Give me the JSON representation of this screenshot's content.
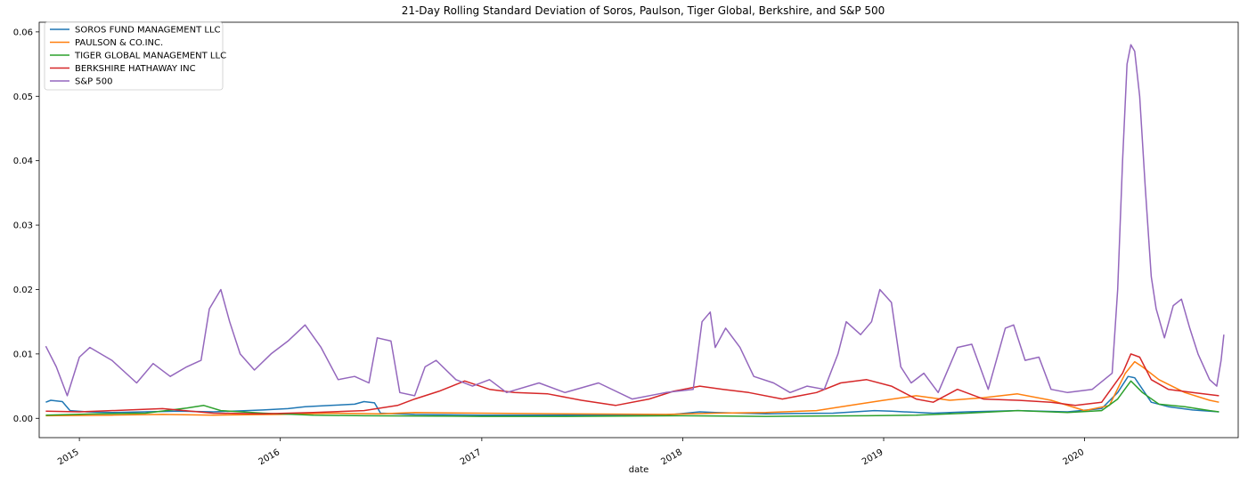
{
  "chart_data": {
    "type": "line",
    "title": "21-Day Rolling Standard Deviation of Soros, Paulson, Tiger Global, Berkshire, and S&P 500",
    "xlabel": "date",
    "ylabel": "",
    "xlim": [
      "2014-10-20",
      "2020-10-06"
    ],
    "ylim": [
      -0.003,
      0.0615
    ],
    "x_ticks": [
      "2015-01-01",
      "2016-01-01",
      "2017-01-01",
      "2018-01-01",
      "2019-01-01",
      "2020-01-01"
    ],
    "x_tick_labels": [
      "2015",
      "2016",
      "2017",
      "2018",
      "2019",
      "2020"
    ],
    "y_ticks": [
      0.0,
      0.01,
      0.02,
      0.03,
      0.04,
      0.05,
      0.06
    ],
    "y_tick_labels": [
      "0.00",
      "0.01",
      "0.02",
      "0.03",
      "0.04",
      "0.05",
      "0.06"
    ],
    "grid": false,
    "legend_position": "top-left",
    "series": [
      {
        "name": "SOROS FUND MANAGEMENT LLC",
        "color": "#1f77b4",
        "points": [
          [
            "2014-11-01",
            0.0025
          ],
          [
            "2014-11-10",
            0.0028
          ],
          [
            "2014-12-01",
            0.0026
          ],
          [
            "2014-12-15",
            0.0012
          ],
          [
            "2015-01-15",
            0.001
          ],
          [
            "2015-03-01",
            0.0009
          ],
          [
            "2015-05-01",
            0.001
          ],
          [
            "2015-07-01",
            0.0011
          ],
          [
            "2015-09-01",
            0.001
          ],
          [
            "2015-11-01",
            0.0012
          ],
          [
            "2015-12-01",
            0.0013
          ],
          [
            "2016-01-15",
            0.0015
          ],
          [
            "2016-02-15",
            0.0018
          ],
          [
            "2016-04-01",
            0.002
          ],
          [
            "2016-05-15",
            0.0022
          ],
          [
            "2016-06-01",
            0.0026
          ],
          [
            "2016-06-20",
            0.0024
          ],
          [
            "2016-07-01",
            0.0008
          ],
          [
            "2016-09-01",
            0.0006
          ],
          [
            "2017-01-01",
            0.0005
          ],
          [
            "2017-06-01",
            0.0005
          ],
          [
            "2017-12-01",
            0.0005
          ],
          [
            "2018-02-01",
            0.001
          ],
          [
            "2018-03-01",
            0.0009
          ],
          [
            "2018-06-01",
            0.0007
          ],
          [
            "2018-10-01",
            0.0008
          ],
          [
            "2018-12-15",
            0.0012
          ],
          [
            "2019-01-15",
            0.0011
          ],
          [
            "2019-04-01",
            0.0008
          ],
          [
            "2019-06-01",
            0.001
          ],
          [
            "2019-09-01",
            0.0012
          ],
          [
            "2019-12-01",
            0.001
          ],
          [
            "2020-02-01",
            0.0015
          ],
          [
            "2020-03-01",
            0.004
          ],
          [
            "2020-03-20",
            0.0065
          ],
          [
            "2020-04-01",
            0.0063
          ],
          [
            "2020-05-01",
            0.0025
          ],
          [
            "2020-06-01",
            0.0018
          ],
          [
            "2020-07-15",
            0.0013
          ],
          [
            "2020-09-01",
            0.001
          ]
        ]
      },
      {
        "name": "PAULSON & CO.INC.",
        "color": "#ff7f0e",
        "points": [
          [
            "2014-11-01",
            0.0004
          ],
          [
            "2015-03-01",
            0.0005
          ],
          [
            "2015-06-01",
            0.0006
          ],
          [
            "2015-09-01",
            0.0005
          ],
          [
            "2016-01-01",
            0.0006
          ],
          [
            "2016-04-01",
            0.0008
          ],
          [
            "2016-07-01",
            0.0007
          ],
          [
            "2016-09-01",
            0.0009
          ],
          [
            "2017-01-01",
            0.0008
          ],
          [
            "2017-06-01",
            0.0007
          ],
          [
            "2017-12-01",
            0.0006
          ],
          [
            "2018-03-01",
            0.0008
          ],
          [
            "2018-06-01",
            0.0009
          ],
          [
            "2018-09-01",
            0.0012
          ],
          [
            "2018-11-01",
            0.002
          ],
          [
            "2019-01-01",
            0.0028
          ],
          [
            "2019-03-01",
            0.0035
          ],
          [
            "2019-05-01",
            0.0028
          ],
          [
            "2019-07-01",
            0.0032
          ],
          [
            "2019-09-01",
            0.0038
          ],
          [
            "2019-11-01",
            0.0028
          ],
          [
            "2020-01-01",
            0.0012
          ],
          [
            "2020-02-15",
            0.002
          ],
          [
            "2020-03-15",
            0.007
          ],
          [
            "2020-04-01",
            0.0088
          ],
          [
            "2020-04-15",
            0.008
          ],
          [
            "2020-05-15",
            0.006
          ],
          [
            "2020-07-01",
            0.004
          ],
          [
            "2020-08-15",
            0.0028
          ],
          [
            "2020-09-01",
            0.0025
          ]
        ]
      },
      {
        "name": "TIGER GLOBAL MANAGEMENT LLC",
        "color": "#2ca02c",
        "points": [
          [
            "2014-11-01",
            0.0005
          ],
          [
            "2015-02-01",
            0.0007
          ],
          [
            "2015-05-01",
            0.0008
          ],
          [
            "2015-07-15",
            0.0016
          ],
          [
            "2015-08-15",
            0.002
          ],
          [
            "2015-09-15",
            0.0012
          ],
          [
            "2015-12-01",
            0.0008
          ],
          [
            "2016-03-01",
            0.0005
          ],
          [
            "2016-06-01",
            0.0004
          ],
          [
            "2017-01-01",
            0.0003
          ],
          [
            "2017-06-01",
            0.0003
          ],
          [
            "2018-01-01",
            0.0004
          ],
          [
            "2018-06-01",
            0.0003
          ],
          [
            "2018-12-01",
            0.0004
          ],
          [
            "2019-03-01",
            0.0005
          ],
          [
            "2019-06-01",
            0.0008
          ],
          [
            "2019-09-01",
            0.0012
          ],
          [
            "2019-12-01",
            0.0009
          ],
          [
            "2020-02-01",
            0.0012
          ],
          [
            "2020-03-01",
            0.003
          ],
          [
            "2020-03-25",
            0.0058
          ],
          [
            "2020-04-15",
            0.004
          ],
          [
            "2020-05-15",
            0.0022
          ],
          [
            "2020-07-01",
            0.0018
          ],
          [
            "2020-08-15",
            0.0012
          ],
          [
            "2020-09-01",
            0.001
          ]
        ]
      },
      {
        "name": "BERKSHIRE HATHAWAY INC",
        "color": "#d62728",
        "points": [
          [
            "2014-11-01",
            0.0011
          ],
          [
            "2015-01-01",
            0.001
          ],
          [
            "2015-04-01",
            0.0013
          ],
          [
            "2015-06-01",
            0.0015
          ],
          [
            "2015-09-01",
            0.0008
          ],
          [
            "2015-12-01",
            0.0007
          ],
          [
            "2016-03-01",
            0.0009
          ],
          [
            "2016-06-01",
            0.0012
          ],
          [
            "2016-08-01",
            0.002
          ],
          [
            "2016-09-01",
            0.003
          ],
          [
            "2016-10-15",
            0.0042
          ],
          [
            "2016-12-01",
            0.0058
          ],
          [
            "2017-01-15",
            0.0045
          ],
          [
            "2017-03-01",
            0.004
          ],
          [
            "2017-05-01",
            0.0038
          ],
          [
            "2017-07-01",
            0.0028
          ],
          [
            "2017-09-01",
            0.002
          ],
          [
            "2017-11-01",
            0.003
          ],
          [
            "2017-12-15",
            0.0042
          ],
          [
            "2018-02-01",
            0.005
          ],
          [
            "2018-03-15",
            0.0045
          ],
          [
            "2018-05-01",
            0.004
          ],
          [
            "2018-07-01",
            0.003
          ],
          [
            "2018-09-01",
            0.004
          ],
          [
            "2018-10-15",
            0.0055
          ],
          [
            "2018-12-01",
            0.006
          ],
          [
            "2019-01-15",
            0.005
          ],
          [
            "2019-03-01",
            0.003
          ],
          [
            "2019-04-01",
            0.0025
          ],
          [
            "2019-05-15",
            0.0045
          ],
          [
            "2019-07-01",
            0.003
          ],
          [
            "2019-09-01",
            0.0028
          ],
          [
            "2019-11-01",
            0.0025
          ],
          [
            "2019-12-15",
            0.002
          ],
          [
            "2020-02-01",
            0.0025
          ],
          [
            "2020-03-10",
            0.007
          ],
          [
            "2020-03-25",
            0.01
          ],
          [
            "2020-04-10",
            0.0095
          ],
          [
            "2020-05-01",
            0.006
          ],
          [
            "2020-06-01",
            0.0045
          ],
          [
            "2020-07-15",
            0.004
          ],
          [
            "2020-09-01",
            0.0035
          ]
        ]
      },
      {
        "name": "S&P 500",
        "color": "#9467bd",
        "points": [
          [
            "2014-11-01",
            0.0112
          ],
          [
            "2014-11-20",
            0.008
          ],
          [
            "2014-12-10",
            0.0035
          ],
          [
            "2015-01-01",
            0.0095
          ],
          [
            "2015-01-20",
            0.011
          ],
          [
            "2015-03-01",
            0.009
          ],
          [
            "2015-04-15",
            0.0055
          ],
          [
            "2015-05-15",
            0.0085
          ],
          [
            "2015-06-15",
            0.0065
          ],
          [
            "2015-07-15",
            0.008
          ],
          [
            "2015-08-10",
            0.009
          ],
          [
            "2015-08-25",
            0.017
          ],
          [
            "2015-09-15",
            0.02
          ],
          [
            "2015-10-01",
            0.015
          ],
          [
            "2015-10-20",
            0.01
          ],
          [
            "2015-11-15",
            0.0075
          ],
          [
            "2015-12-15",
            0.01
          ],
          [
            "2016-01-15",
            0.012
          ],
          [
            "2016-02-15",
            0.0145
          ],
          [
            "2016-03-15",
            0.011
          ],
          [
            "2016-04-15",
            0.006
          ],
          [
            "2016-05-15",
            0.0065
          ],
          [
            "2016-06-10",
            0.0055
          ],
          [
            "2016-06-25",
            0.0125
          ],
          [
            "2016-07-20",
            0.012
          ],
          [
            "2016-08-05",
            0.004
          ],
          [
            "2016-09-01",
            0.0035
          ],
          [
            "2016-09-20",
            0.008
          ],
          [
            "2016-10-10",
            0.009
          ],
          [
            "2016-11-15",
            0.006
          ],
          [
            "2016-12-15",
            0.005
          ],
          [
            "2017-01-15",
            0.006
          ],
          [
            "2017-02-15",
            0.004
          ],
          [
            "2017-04-15",
            0.0055
          ],
          [
            "2017-06-01",
            0.004
          ],
          [
            "2017-08-01",
            0.0055
          ],
          [
            "2017-10-01",
            0.003
          ],
          [
            "2017-12-01",
            0.004
          ],
          [
            "2018-01-20",
            0.0045
          ],
          [
            "2018-02-05",
            0.015
          ],
          [
            "2018-02-20",
            0.0165
          ],
          [
            "2018-03-01",
            0.011
          ],
          [
            "2018-03-20",
            0.014
          ],
          [
            "2018-04-15",
            0.011
          ],
          [
            "2018-05-10",
            0.0065
          ],
          [
            "2018-06-15",
            0.0055
          ],
          [
            "2018-07-15",
            0.004
          ],
          [
            "2018-08-15",
            0.005
          ],
          [
            "2018-09-15",
            0.0045
          ],
          [
            "2018-10-10",
            0.01
          ],
          [
            "2018-10-25",
            0.015
          ],
          [
            "2018-11-20",
            0.013
          ],
          [
            "2018-12-10",
            0.015
          ],
          [
            "2018-12-25",
            0.02
          ],
          [
            "2019-01-15",
            0.018
          ],
          [
            "2019-02-01",
            0.008
          ],
          [
            "2019-02-20",
            0.0055
          ],
          [
            "2019-03-15",
            0.007
          ],
          [
            "2019-04-10",
            0.004
          ],
          [
            "2019-05-15",
            0.011
          ],
          [
            "2019-06-10",
            0.0115
          ],
          [
            "2019-07-10",
            0.0045
          ],
          [
            "2019-08-10",
            0.014
          ],
          [
            "2019-08-25",
            0.0145
          ],
          [
            "2019-09-15",
            0.009
          ],
          [
            "2019-10-10",
            0.0095
          ],
          [
            "2019-11-01",
            0.0045
          ],
          [
            "2019-12-01",
            0.004
          ],
          [
            "2020-01-15",
            0.0045
          ],
          [
            "2020-02-20",
            0.007
          ],
          [
            "2020-03-01",
            0.02
          ],
          [
            "2020-03-10",
            0.04
          ],
          [
            "2020-03-18",
            0.055
          ],
          [
            "2020-03-25",
            0.058
          ],
          [
            "2020-04-01",
            0.057
          ],
          [
            "2020-04-10",
            0.05
          ],
          [
            "2020-04-20",
            0.036
          ],
          [
            "2020-05-01",
            0.022
          ],
          [
            "2020-05-10",
            0.017
          ],
          [
            "2020-05-25",
            0.0125
          ],
          [
            "2020-06-10",
            0.0175
          ],
          [
            "2020-06-25",
            0.0185
          ],
          [
            "2020-07-10",
            0.014
          ],
          [
            "2020-07-25",
            0.01
          ],
          [
            "2020-08-15",
            0.006
          ],
          [
            "2020-08-28",
            0.005
          ],
          [
            "2020-09-05",
            0.009
          ],
          [
            "2020-09-10",
            0.013
          ]
        ]
      }
    ]
  }
}
